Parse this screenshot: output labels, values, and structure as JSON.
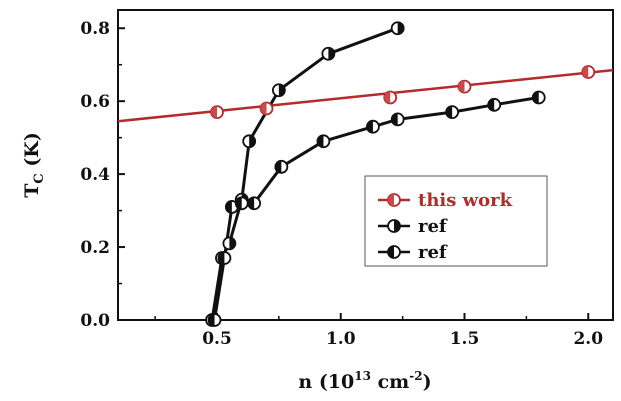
{
  "chart_data": {
    "type": "line",
    "xlabel": {
      "prefix": "n (10",
      "sup1": "13",
      "mid": " cm",
      "sup2": "-2",
      "suffix": ")"
    },
    "ylabel": {
      "main": "T",
      "sub": "C",
      "suffix": " (K)"
    },
    "xlim": [
      0.1,
      2.1
    ],
    "ylim": [
      0.0,
      0.85
    ],
    "xticks": [
      "0.5",
      "1.0",
      "1.5",
      "2.0"
    ],
    "yticks": [
      "0.0",
      "0.2",
      "0.4",
      "0.6",
      "0.8"
    ],
    "grid": false,
    "legend_position": "center-right",
    "series": [
      {
        "name": "this work",
        "color": "#b52a2a",
        "marker": "circle-half-left",
        "marker_fill": "#c94a4a",
        "x": [
          0.5,
          0.7,
          1.2,
          1.5,
          2.0
        ],
        "y": [
          0.57,
          0.58,
          0.61,
          0.64,
          0.68
        ],
        "fit_line": {
          "x": [
            0.1,
            2.1
          ],
          "y": [
            0.545,
            0.685
          ]
        }
      },
      {
        "name": "ref",
        "color": "#111111",
        "marker": "circle-half-right",
        "marker_fill": "#111111",
        "x": [
          0.48,
          0.52,
          0.55,
          0.6,
          0.63,
          0.75,
          0.95,
          1.23
        ],
        "y": [
          0.0,
          0.17,
          0.21,
          0.33,
          0.49,
          0.63,
          0.73,
          0.8
        ]
      },
      {
        "name": "ref",
        "color": "#111111",
        "marker": "circle-half-left",
        "marker_fill": "#111111",
        "x": [
          0.49,
          0.53,
          0.56,
          0.6,
          0.65,
          0.76,
          0.93,
          1.13,
          1.23,
          1.45,
          1.62,
          1.8
        ],
        "y": [
          0.0,
          0.17,
          0.31,
          0.32,
          0.32,
          0.42,
          0.49,
          0.53,
          0.55,
          0.57,
          0.59,
          0.61
        ]
      }
    ]
  }
}
